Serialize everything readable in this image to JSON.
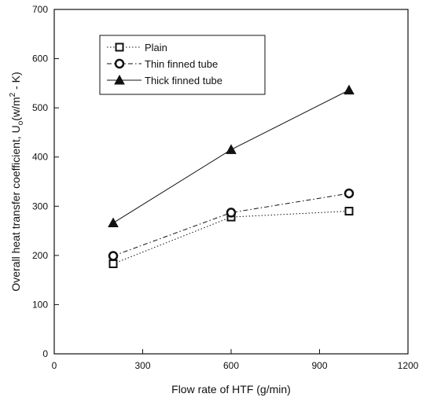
{
  "chart_data": {
    "type": "line",
    "xlabel": "Flow rate of HTF (g/min)",
    "ylabel": "Overall heat transfer coefficient, U",
    "ylabel_sub": "o",
    "ylabel_units_pre": "(w/m",
    "ylabel_units_sup": "2",
    "ylabel_units_post": " - K)",
    "xlim": [
      0,
      1200
    ],
    "ylim": [
      0,
      700
    ],
    "xticks": [
      0,
      300,
      600,
      900,
      1200
    ],
    "yticks": [
      0,
      100,
      200,
      300,
      400,
      500,
      600,
      700
    ],
    "grid": false,
    "legend_position": "top-left",
    "series": [
      {
        "name": "Plain",
        "marker": "square",
        "line_style": "dotted",
        "x": [
          200,
          600,
          1000
        ],
        "y": [
          183,
          278,
          290
        ]
      },
      {
        "name": "Thin finned tube",
        "marker": "circle",
        "line_style": "dash-dot",
        "x": [
          200,
          600,
          1000
        ],
        "y": [
          199,
          287,
          326
        ]
      },
      {
        "name": "Thick finned tube",
        "marker": "triangle",
        "line_style": "solid",
        "x": [
          200,
          600,
          1000
        ],
        "y": [
          266,
          415,
          536
        ]
      }
    ]
  }
}
